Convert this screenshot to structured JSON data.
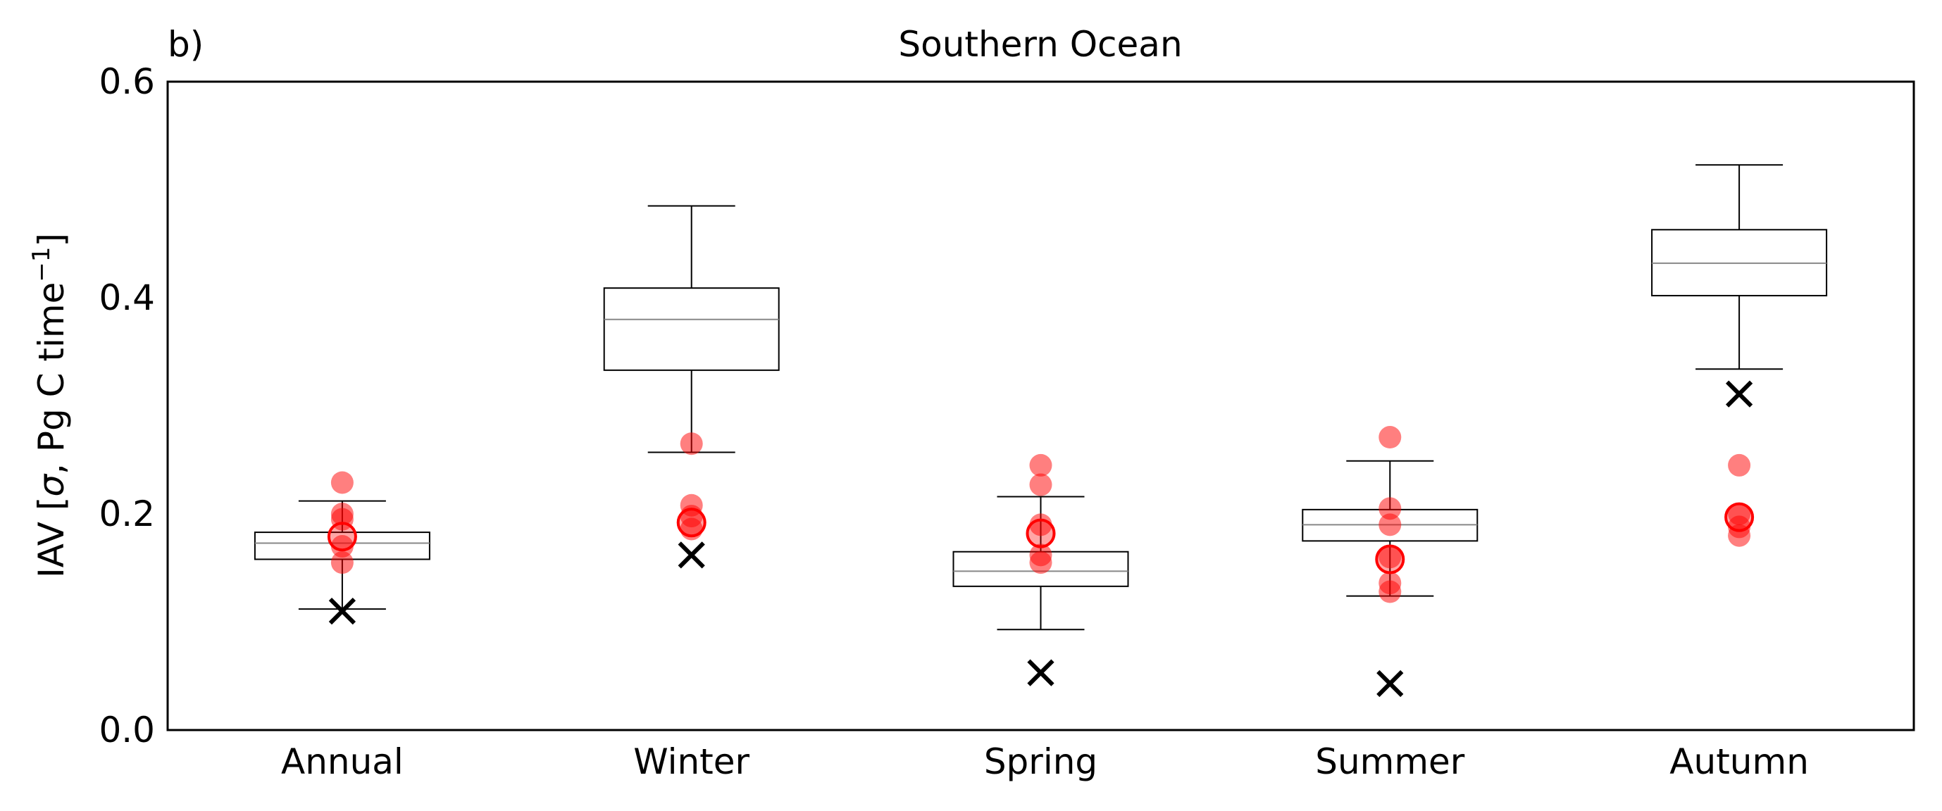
{
  "chart_data": {
    "type": "box",
    "title": "Southern Ocean",
    "panel_label": "b)",
    "xlabel": "",
    "ylabel_parts": {
      "before": "IAV [",
      "sigma": "σ",
      "middle": ", Pg C time",
      "superscript": "−1",
      "after": "]"
    },
    "ylim": [
      0.0,
      0.6
    ],
    "yticks": [
      {
        "value": 0.0,
        "label": "0.0"
      },
      {
        "value": 0.2,
        "label": "0.2"
      },
      {
        "value": 0.4,
        "label": "0.4"
      },
      {
        "value": 0.6,
        "label": "0.6"
      }
    ],
    "grid": false,
    "categories": [
      "Annual",
      "Winter",
      "Spring",
      "Summer",
      "Autumn"
    ],
    "boxes": [
      {
        "whisker_low": 0.112,
        "q1": 0.158,
        "median": 0.173,
        "q3": 0.183,
        "whisker_high": 0.212
      },
      {
        "whisker_low": 0.257,
        "q1": 0.333,
        "median": 0.38,
        "q3": 0.409,
        "whisker_high": 0.485
      },
      {
        "whisker_low": 0.093,
        "q1": 0.133,
        "median": 0.147,
        "q3": 0.165,
        "whisker_high": 0.216
      },
      {
        "whisker_low": 0.124,
        "q1": 0.175,
        "median": 0.19,
        "q3": 0.204,
        "whisker_high": 0.249
      },
      {
        "whisker_low": 0.334,
        "q1": 0.402,
        "median": 0.432,
        "q3": 0.463,
        "whisker_high": 0.523
      }
    ],
    "red_points": [
      [
        0.229,
        0.2,
        0.195,
        0.17,
        0.155
      ],
      [
        0.265,
        0.208,
        0.198,
        0.186
      ],
      [
        0.245,
        0.227,
        0.19,
        0.162,
        0.155
      ],
      [
        0.271,
        0.205,
        0.19,
        0.16,
        0.136,
        0.128
      ],
      [
        0.245,
        0.2,
        0.188,
        0.18
      ]
    ],
    "red_circles": [
      0.179,
      0.192,
      0.182,
      0.158,
      0.197
    ],
    "x_markers": [
      0.11,
      0.162,
      0.053,
      0.043,
      0.311
    ],
    "colors": {
      "box": "#000000",
      "median": "#888888",
      "points": "#ff0000",
      "marker": "#000000"
    }
  }
}
